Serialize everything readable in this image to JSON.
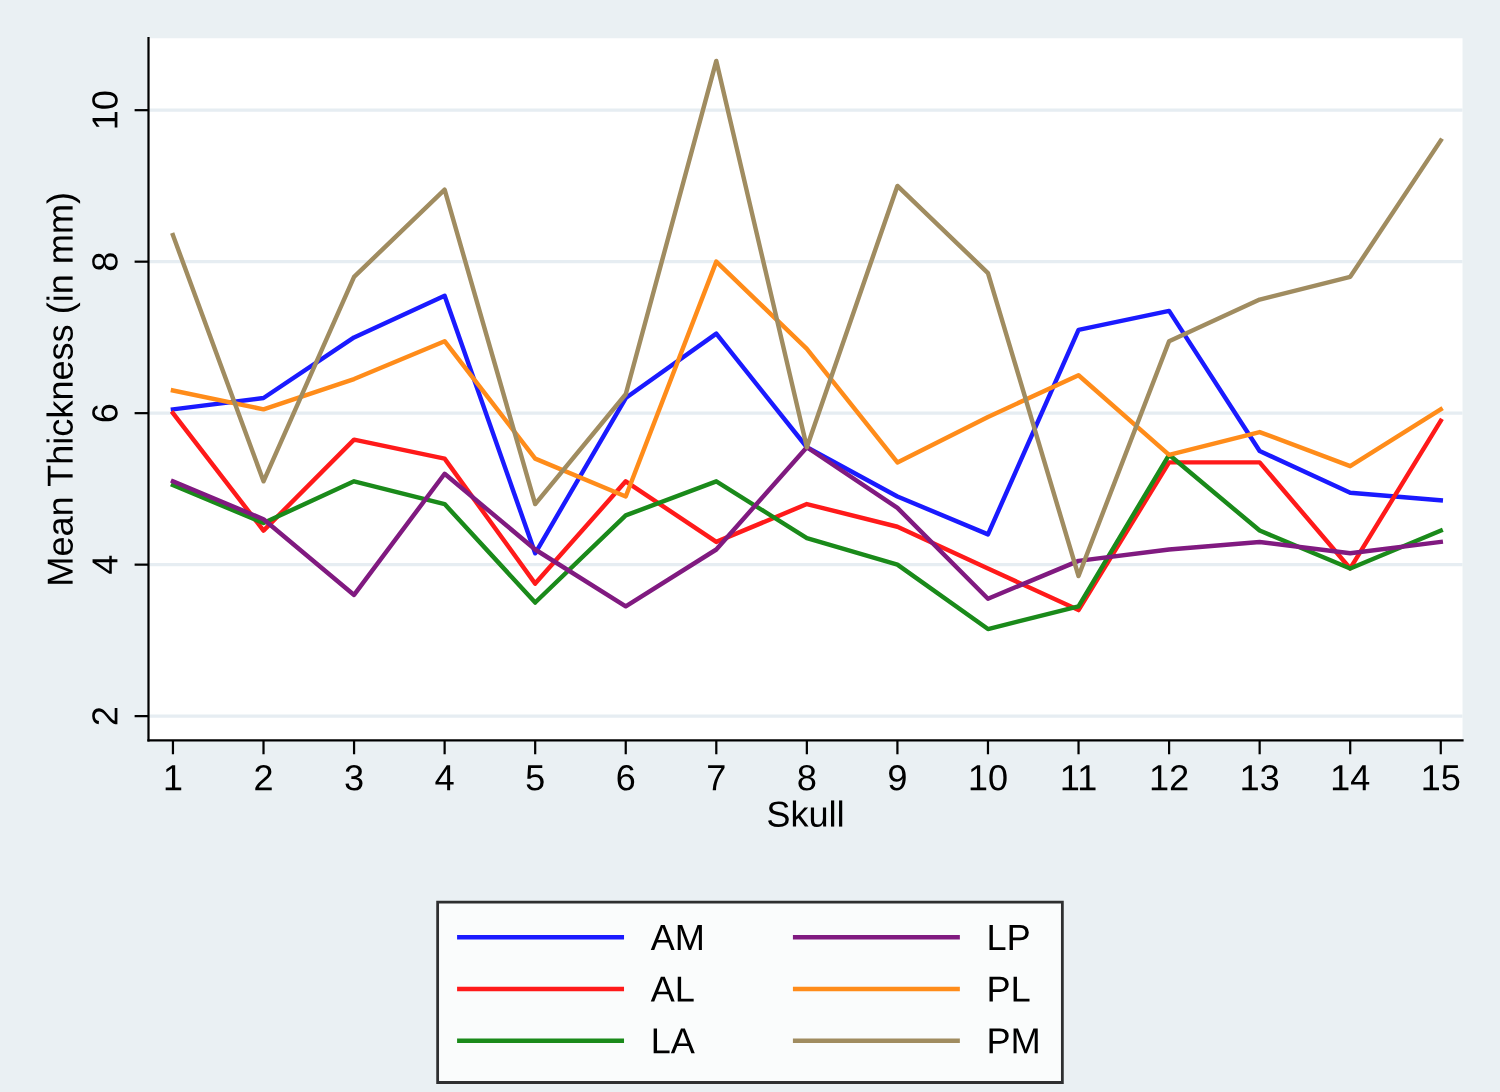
{
  "chart_data": {
    "type": "line",
    "xlabel": "Skull",
    "ylabel": "Mean Thickness (in mm)",
    "x": [
      1,
      2,
      3,
      4,
      5,
      6,
      7,
      8,
      9,
      10,
      11,
      12,
      13,
      14,
      15
    ],
    "xlim": [
      0.73,
      15.24
    ],
    "xticks": [
      1,
      2,
      3,
      4,
      5,
      6,
      7,
      8,
      9,
      10,
      11,
      12,
      13,
      14,
      15
    ],
    "ylim": [
      1.68,
      10.95
    ],
    "yticks": [
      2,
      4,
      6,
      8,
      10
    ],
    "grid": "y",
    "legend": "bottom",
    "marker": "none",
    "line_style": "solid",
    "series": [
      {
        "name": "AM",
        "color": "#1a1aff",
        "values": [
          6.05,
          6.2,
          7.0,
          7.55,
          4.15,
          6.2,
          7.05,
          5.55,
          4.9,
          4.4,
          7.1,
          7.35,
          5.5,
          4.95,
          4.85
        ]
      },
      {
        "name": "AL",
        "color": "#ff1a1a",
        "values": [
          6.0,
          4.45,
          5.65,
          5.4,
          3.75,
          5.1,
          4.3,
          4.8,
          4.5,
          3.95,
          3.4,
          5.35,
          5.35,
          3.95,
          5.9
        ]
      },
      {
        "name": "LA",
        "color": "#1a8a1a",
        "values": [
          5.05,
          4.55,
          5.1,
          4.8,
          3.5,
          4.65,
          5.1,
          4.35,
          4.0,
          3.15,
          3.45,
          5.45,
          4.45,
          3.95,
          4.45
        ]
      },
      {
        "name": "LP",
        "color": "#801a80",
        "values": [
          5.1,
          4.6,
          3.6,
          5.2,
          4.2,
          3.45,
          4.2,
          5.55,
          4.75,
          3.55,
          4.05,
          4.2,
          4.3,
          4.15,
          4.3
        ]
      },
      {
        "name": "PL",
        "color": "#ff8c1a",
        "values": [
          6.3,
          6.05,
          6.45,
          6.95,
          5.4,
          4.9,
          8.0,
          6.85,
          5.35,
          5.95,
          6.5,
          5.45,
          5.75,
          5.3,
          6.05
        ]
      },
      {
        "name": "PM",
        "color": "#a08c60",
        "values": [
          8.35,
          5.1,
          7.8,
          8.95,
          4.8,
          6.25,
          10.65,
          5.55,
          9.0,
          7.85,
          3.85,
          6.95,
          7.5,
          7.8,
          9.6
        ]
      }
    ]
  }
}
